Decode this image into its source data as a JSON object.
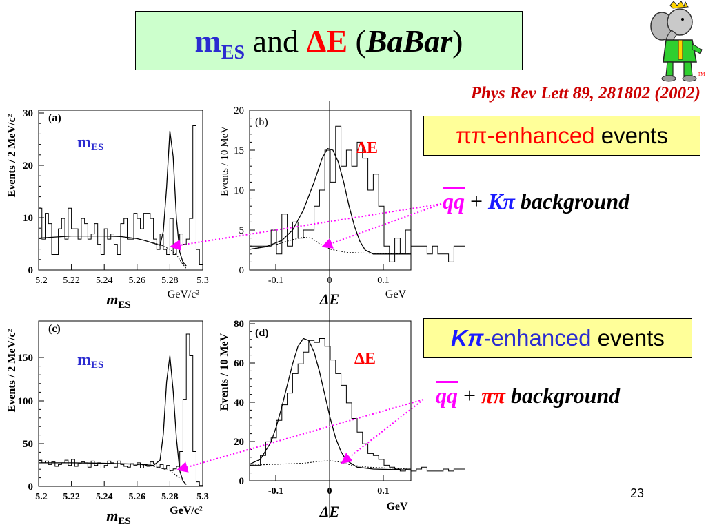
{
  "title": {
    "m": "m",
    "es": "ES",
    "and": " and ",
    "delta_e": "ΔE",
    "open": " (",
    "babar": "BaBar",
    "close": ")"
  },
  "reference": "Phys Rev Lett 89, 281802 (2002)",
  "logo": {
    "icon": "babar-elephant-mascot",
    "tm": "TM"
  },
  "box_pipi": {
    "pipi": "ππ",
    "enh": "-enhanced ",
    "events": "events"
  },
  "bg_pipi": {
    "qq": "qq",
    "plus": " + ",
    "kpi": "Kπ",
    "word": " background"
  },
  "box_kpi": {
    "kpi": "Kπ",
    "enh": "-enhanced ",
    "events": "events"
  },
  "bg_kpi": {
    "qq": "qq",
    "plus": " + ",
    "pipi": "ππ",
    "word": " background"
  },
  "page_number": "23",
  "chart_data": [
    {
      "type": "histogram",
      "panel_label": "(a)",
      "inset_label": "mES",
      "ylabel": "Events / 2 MeV/c²",
      "xlabel": "mES",
      "x_unit": "GeV/c²",
      "xlim": [
        5.2,
        5.3
      ],
      "ylim": [
        0,
        31
      ],
      "x_ticks": [
        "5.2",
        "5.22",
        "5.24",
        "5.26",
        "5.28",
        "5.3"
      ],
      "y_ticks": [
        "0",
        "10",
        "20",
        "30"
      ],
      "bin_width": 0.002,
      "values": [
        12,
        6,
        11,
        9,
        3,
        3,
        8,
        10,
        6,
        12,
        8,
        8,
        6,
        10,
        9,
        6,
        7,
        9,
        5,
        3,
        8,
        6,
        7,
        5,
        3,
        9,
        10,
        6,
        6,
        11,
        10,
        8,
        11,
        11,
        10,
        6,
        4,
        7,
        4,
        3,
        10,
        3,
        5,
        7,
        5,
        6,
        10,
        28,
        4,
        1
      ],
      "curves": [
        {
          "name": "fit",
          "style": "solid",
          "points": [
            [
              5.2,
              6.2
            ],
            [
              5.21,
              6.4
            ],
            [
              5.22,
              6.6
            ],
            [
              5.23,
              6.6
            ],
            [
              5.24,
              6.6
            ],
            [
              5.25,
              6.5
            ],
            [
              5.26,
              6.1
            ],
            [
              5.265,
              5.7
            ],
            [
              5.27,
              5.2
            ],
            [
              5.272,
              5.0
            ],
            [
              5.274,
              4.8
            ],
            [
              5.276,
              7.5
            ],
            [
              5.278,
              16
            ],
            [
              5.28,
              27
            ],
            [
              5.282,
              22
            ],
            [
              5.284,
              10
            ],
            [
              5.286,
              3.5
            ],
            [
              5.288,
              1.5
            ],
            [
              5.29,
              0.8
            ]
          ]
        },
        {
          "name": "background",
          "style": "dashed",
          "points": [
            [
              5.27,
              5.3
            ],
            [
              5.275,
              4.8
            ],
            [
              5.28,
              4.0
            ],
            [
              5.284,
              3.0
            ],
            [
              5.287,
              1.5
            ],
            [
              5.29,
              0.3
            ]
          ]
        }
      ]
    },
    {
      "type": "histogram",
      "panel_label": "(b)",
      "inset_label": "ΔE",
      "ylabel": "Events / 10 MeV",
      "xlabel": "ΔE",
      "x_unit": "GeV",
      "xlim": [
        -0.15,
        0.15
      ],
      "ylim": [
        0,
        20
      ],
      "x_ticks": [
        "-0.1",
        "0",
        "0.1"
      ],
      "y_ticks": [
        "0",
        "5",
        "10",
        "15",
        "20"
      ],
      "bin_width": 0.01,
      "values": [
        3,
        3,
        3,
        3,
        5,
        2,
        7,
        3,
        6,
        4,
        5,
        5,
        8,
        10,
        15,
        11,
        18,
        13,
        15,
        13,
        16,
        14,
        10,
        12,
        8,
        3,
        1,
        4,
        2,
        5,
        3,
        3,
        3,
        2,
        3,
        2,
        2,
        1,
        3,
        3
      ],
      "curves": [
        {
          "name": "fit",
          "style": "solid",
          "points": [
            [
              -0.15,
              2.6
            ],
            [
              -0.12,
              2.9
            ],
            [
              -0.09,
              3.7
            ],
            [
              -0.07,
              5.0
            ],
            [
              -0.05,
              7.5
            ],
            [
              -0.03,
              11
            ],
            [
              -0.015,
              14
            ],
            [
              -0.005,
              15.2
            ],
            [
              0.005,
              15
            ],
            [
              0.015,
              13.5
            ],
            [
              0.025,
              11
            ],
            [
              0.035,
              8
            ],
            [
              0.045,
              5.5
            ],
            [
              0.055,
              3.6
            ],
            [
              0.065,
              2.5
            ],
            [
              0.08,
              2
            ],
            [
              0.1,
              2
            ],
            [
              0.15,
              2
            ]
          ]
        },
        {
          "name": "background",
          "style": "dashed",
          "points": [
            [
              -0.15,
              2.6
            ],
            [
              -0.1,
              3.2
            ],
            [
              -0.07,
              3.8
            ],
            [
              -0.05,
              4.1
            ],
            [
              -0.035,
              4.0
            ],
            [
              -0.02,
              3.3
            ],
            [
              0,
              2.6
            ],
            [
              0.03,
              2.2
            ],
            [
              0.07,
              2.1
            ],
            [
              0.15,
              2
            ]
          ]
        }
      ]
    },
    {
      "type": "histogram",
      "panel_label": "(c)",
      "inset_label": "mES",
      "ylabel": "Events / 2 MeV/c²",
      "xlabel": "mES",
      "x_unit": "GeV/c²",
      "xlim": [
        5.2,
        5.3
      ],
      "ylim": [
        0,
        190
      ],
      "x_ticks": [
        "5.2",
        "5.22",
        "5.24",
        "5.26",
        "5.28",
        "5.3"
      ],
      "y_ticks": [
        "0",
        "50",
        "100",
        "150"
      ],
      "bin_width": 0.002,
      "values": [
        30,
        27,
        29,
        25,
        28,
        23,
        25,
        27,
        30,
        24,
        31,
        23,
        26,
        28,
        27,
        22,
        29,
        24,
        27,
        21,
        24,
        29,
        27,
        22,
        29,
        25,
        23,
        22,
        26,
        24,
        27,
        21,
        25,
        23,
        28,
        26,
        22,
        25,
        20,
        24,
        18,
        20,
        23,
        40,
        100,
        175,
        150,
        40,
        5,
        1
      ],
      "curves": [
        {
          "name": "fit",
          "style": "solid",
          "points": [
            [
              5.2,
              27
            ],
            [
              5.22,
              27
            ],
            [
              5.24,
              26.5
            ],
            [
              5.26,
              25.5
            ],
            [
              5.27,
              24
            ],
            [
              5.274,
              30
            ],
            [
              5.276,
              60
            ],
            [
              5.278,
              120
            ],
            [
              5.28,
              150
            ],
            [
              5.282,
              110
            ],
            [
              5.284,
              55
            ],
            [
              5.286,
              18
            ],
            [
              5.288,
              6
            ],
            [
              5.29,
              2
            ]
          ]
        },
        {
          "name": "background",
          "style": "dashed",
          "points": [
            [
              5.26,
              25
            ],
            [
              5.27,
              23
            ],
            [
              5.28,
              18
            ],
            [
              5.285,
              11
            ],
            [
              5.29,
              2
            ]
          ]
        }
      ]
    },
    {
      "type": "histogram",
      "panel_label": "(d)",
      "inset_label": "ΔE",
      "ylabel": "Events / 10 MeV",
      "xlabel": "ΔE",
      "x_unit": "GeV",
      "xlim": [
        -0.15,
        0.15
      ],
      "ylim": [
        0,
        82
      ],
      "x_ticks": [
        "-0.1",
        "0.1",
        "0"
      ],
      "y_ticks": [
        "0",
        "20",
        "40",
        "60",
        "80"
      ],
      "bin_width": 0.01,
      "values": [
        8,
        8,
        13,
        20,
        22,
        31,
        39,
        45,
        55,
        60,
        66,
        72,
        71,
        73,
        69,
        62,
        55,
        49,
        40,
        32,
        25,
        19,
        14,
        13,
        11,
        8,
        7,
        6,
        5,
        6,
        5,
        6,
        7,
        5,
        5,
        5,
        6,
        5,
        6,
        6
      ],
      "curves": [
        {
          "name": "fit",
          "style": "solid",
          "points": [
            [
              -0.15,
              8.5
            ],
            [
              -0.13,
              11
            ],
            [
              -0.11,
              20
            ],
            [
              -0.1,
              28
            ],
            [
              -0.09,
              38
            ],
            [
              -0.08,
              49
            ],
            [
              -0.07,
              60
            ],
            [
              -0.06,
              69
            ],
            [
              -0.05,
              73
            ],
            [
              -0.04,
              72
            ],
            [
              -0.03,
              66
            ],
            [
              -0.02,
              56
            ],
            [
              -0.01,
              44
            ],
            [
              0,
              32
            ],
            [
              0.01,
              22
            ],
            [
              0.02,
              15
            ],
            [
              0.03,
              10.5
            ],
            [
              0.05,
              7
            ],
            [
              0.08,
              6
            ],
            [
              0.15,
              5.5
            ]
          ]
        },
        {
          "name": "background",
          "style": "dashed",
          "points": [
            [
              -0.15,
              8
            ],
            [
              -0.1,
              8.5
            ],
            [
              -0.05,
              9
            ],
            [
              -0.02,
              10
            ],
            [
              0,
              10.3
            ],
            [
              0.02,
              9.5
            ],
            [
              0.04,
              8
            ],
            [
              0.07,
              7
            ],
            [
              0.15,
              6
            ]
          ]
        }
      ]
    }
  ]
}
